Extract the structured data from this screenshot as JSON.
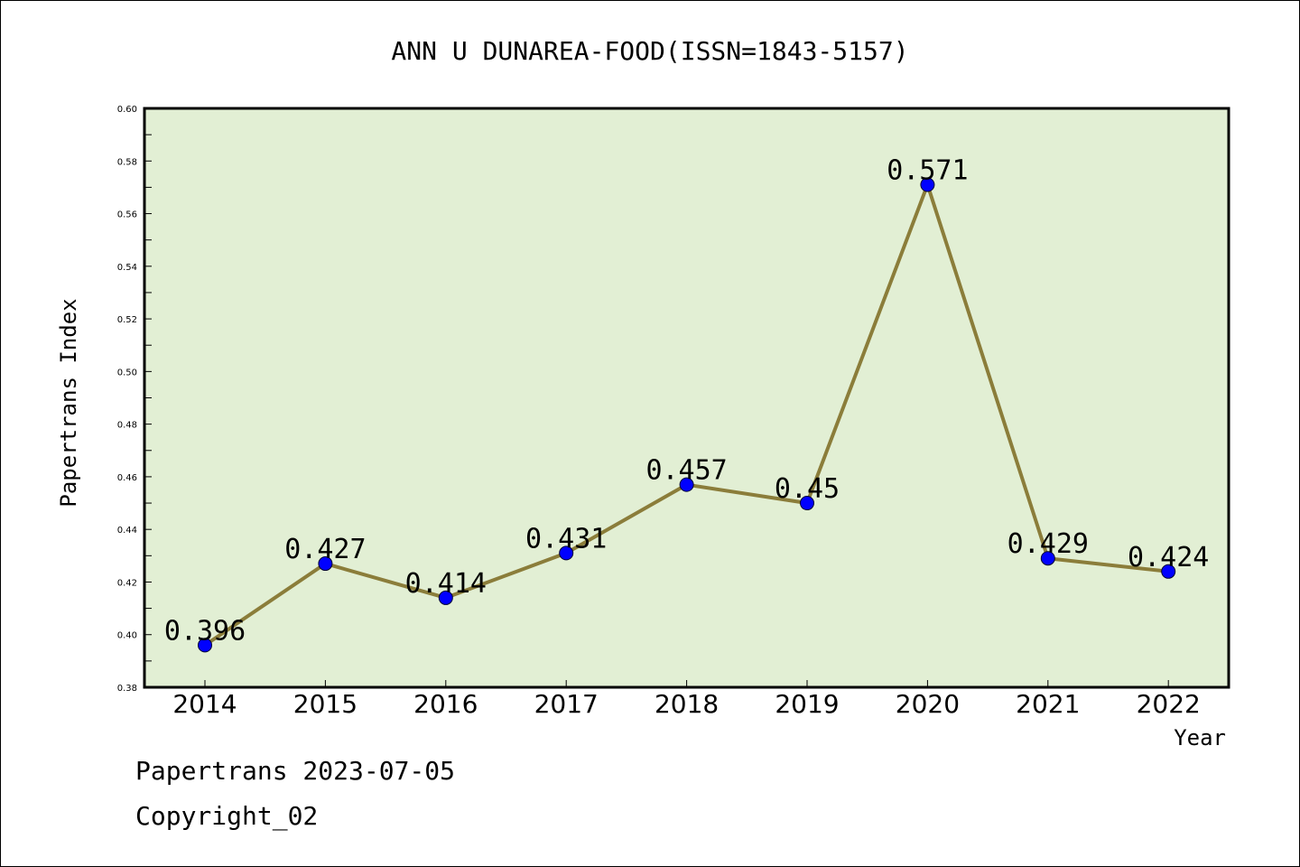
{
  "chart_data": {
    "type": "line",
    "title": "ANN U DUNAREA-FOOD(ISSN=1843-5157)",
    "xlabel": "Year",
    "ylabel": "Papertrans Index",
    "categories": [
      "2014",
      "2015",
      "2016",
      "2017",
      "2018",
      "2019",
      "2020",
      "2021",
      "2022"
    ],
    "values": [
      0.396,
      0.427,
      0.414,
      0.431,
      0.457,
      0.45,
      0.571,
      0.429,
      0.424
    ],
    "data_labels": [
      "0.396",
      "0.427",
      "0.414",
      "0.431",
      "0.457",
      "0.45",
      "0.571",
      "0.429",
      "0.424"
    ],
    "ylim": [
      0.38,
      0.6
    ],
    "yticks": [
      "0.38",
      "0.40",
      "0.42",
      "0.44",
      "0.46",
      "0.48",
      "0.50",
      "0.52",
      "0.54",
      "0.56",
      "0.58",
      "0.60"
    ],
    "grid": false,
    "colors": {
      "plot_background": "#e2efd4",
      "line": "#8b7d3a",
      "marker": "#0000ff"
    }
  },
  "footer": {
    "line1": "Papertrans 2023-07-05",
    "line2": "Copyright_02"
  }
}
